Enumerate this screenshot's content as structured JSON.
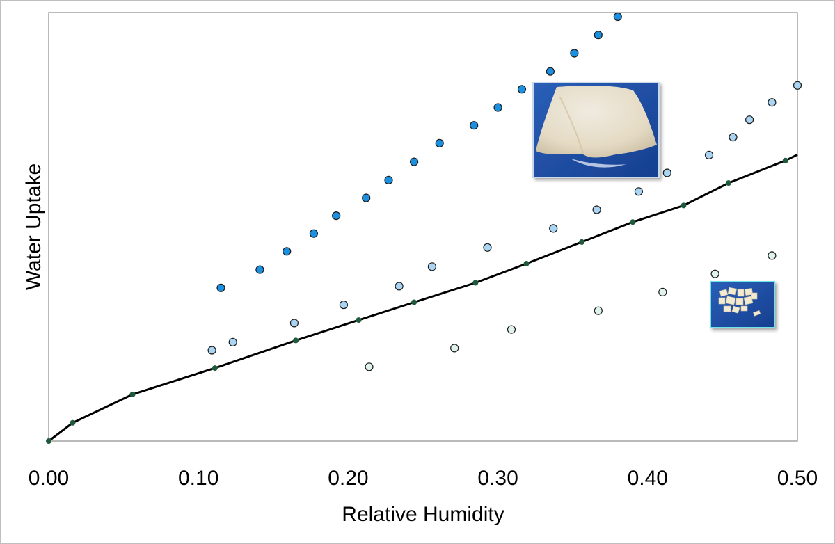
{
  "chart_data": {
    "type": "scatter",
    "xlabel": "Relative Humidity",
    "ylabel": "Water Uptake",
    "xlim": [
      0,
      0.5
    ],
    "ylim": [
      0,
      1
    ],
    "x_ticks": [
      "0.00",
      "0.10",
      "0.20",
      "0.30",
      "0.40",
      "0.50"
    ],
    "y_ticks_shown": false,
    "grid": false,
    "legend": "none",
    "series": [
      {
        "style": "line-with-markers",
        "color": "#000000",
        "marker_color": "#1f5a3c",
        "points": [
          [
            0.0,
            0.0
          ],
          [
            0.016,
            0.043
          ],
          [
            0.056,
            0.11
          ],
          [
            0.111,
            0.172
          ],
          [
            0.165,
            0.237
          ],
          [
            0.207,
            0.285
          ],
          [
            0.244,
            0.327
          ],
          [
            0.285,
            0.373
          ],
          [
            0.319,
            0.418
          ],
          [
            0.356,
            0.469
          ],
          [
            0.39,
            0.516
          ],
          [
            0.424,
            0.555
          ],
          [
            0.454,
            0.608
          ],
          [
            0.492,
            0.661
          ],
          [
            0.5,
            0.675
          ]
        ]
      },
      {
        "style": "markers",
        "color": "#1b8fe0",
        "points": [
          [
            0.115,
            0.361
          ],
          [
            0.141,
            0.404
          ],
          [
            0.159,
            0.447
          ],
          [
            0.177,
            0.489
          ],
          [
            0.192,
            0.531
          ],
          [
            0.212,
            0.573
          ],
          [
            0.227,
            0.615
          ],
          [
            0.244,
            0.658
          ],
          [
            0.261,
            0.702
          ],
          [
            0.284,
            0.744
          ],
          [
            0.3,
            0.786
          ],
          [
            0.316,
            0.829
          ],
          [
            0.335,
            0.871
          ],
          [
            0.351,
            0.914
          ],
          [
            0.367,
            0.957
          ],
          [
            0.38,
            1.0
          ]
        ]
      },
      {
        "style": "markers",
        "color": "#a9d4f2",
        "points": [
          [
            0.109,
            0.214
          ],
          [
            0.123,
            0.233
          ],
          [
            0.164,
            0.278
          ],
          [
            0.197,
            0.321
          ],
          [
            0.234,
            0.365
          ],
          [
            0.256,
            0.411
          ],
          [
            0.293,
            0.456
          ],
          [
            0.337,
            0.501
          ],
          [
            0.366,
            0.545
          ],
          [
            0.394,
            0.588
          ],
          [
            0.413,
            0.632
          ],
          [
            0.441,
            0.674
          ],
          [
            0.457,
            0.716
          ],
          [
            0.468,
            0.757
          ],
          [
            0.483,
            0.798
          ],
          [
            0.5,
            0.838
          ]
        ]
      },
      {
        "style": "markers",
        "color": "#dff3ea",
        "points": [
          [
            0.214,
            0.175
          ],
          [
            0.271,
            0.219
          ],
          [
            0.309,
            0.263
          ],
          [
            0.367,
            0.307
          ],
          [
            0.41,
            0.351
          ],
          [
            0.445,
            0.394
          ],
          [
            0.483,
            0.437
          ]
        ]
      }
    ],
    "insets": [
      {
        "name": "film-photo",
        "description_icon": "flexible-film-photo"
      },
      {
        "name": "fragments-photo",
        "description_icon": "brittle-fragments-photo"
      }
    ]
  }
}
